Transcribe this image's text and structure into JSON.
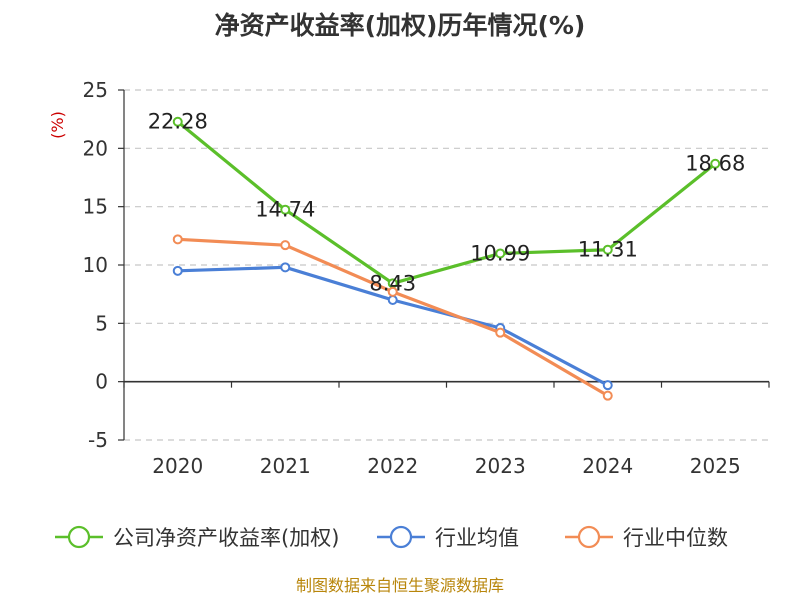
{
  "chart_data": {
    "type": "line",
    "title": "净资产收益率(加权)历年情况(%)",
    "ylabel": "(%)",
    "categories": [
      "2020",
      "2021",
      "2022",
      "2023",
      "2024",
      "2025"
    ],
    "yticks": [
      25,
      20,
      15,
      10,
      5,
      0,
      -5
    ],
    "ylim": [
      -5,
      25
    ],
    "grid": true,
    "legend_position": "bottom",
    "series": [
      {
        "name": "公司净资产收益率(加权)",
        "color": "#5bbf2a",
        "values": [
          22.28,
          14.74,
          8.43,
          10.99,
          11.31,
          18.68
        ],
        "labels": [
          "22.28",
          "14.74",
          "8.43",
          "10.99",
          "11.31",
          "18.68"
        ]
      },
      {
        "name": "行业均值",
        "color": "#4a7fd6",
        "values": [
          9.5,
          9.8,
          7.0,
          4.6,
          -0.3,
          null
        ]
      },
      {
        "name": "行业中位数",
        "color": "#f28c55",
        "values": [
          12.2,
          11.7,
          7.7,
          4.2,
          -1.2,
          null
        ]
      }
    ],
    "source": "制图数据来自恒生聚源数据库"
  }
}
